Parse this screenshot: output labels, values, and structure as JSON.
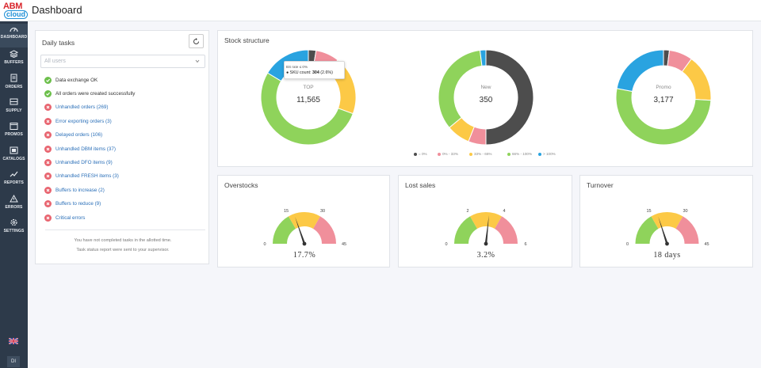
{
  "header": {
    "title": "Dashboard",
    "logo_top": "ABM",
    "logo_bottom": "cloud"
  },
  "sidebar": {
    "items": [
      {
        "label": "DASHBOARD",
        "icon": "gauge-icon"
      },
      {
        "label": "BUFFERS",
        "icon": "layers-icon"
      },
      {
        "label": "ORDERS",
        "icon": "document-icon"
      },
      {
        "label": "SUPPLY",
        "icon": "truck-icon"
      },
      {
        "label": "PROMOS",
        "icon": "calendar-icon"
      },
      {
        "label": "CATALOGS",
        "icon": "catalog-icon"
      },
      {
        "label": "REPORTS",
        "icon": "chart-icon"
      },
      {
        "label": "ERRORS",
        "icon": "warning-icon"
      },
      {
        "label": "SETTINGS",
        "icon": "gear-icon"
      }
    ],
    "language_icon": "uk-flag-icon",
    "user_initials": "DI"
  },
  "tasks": {
    "title": "Daily tasks",
    "select_placeholder": "All users",
    "items": [
      {
        "label": "Data exchange OK",
        "status": "ok"
      },
      {
        "label": "All orders were created successfully",
        "status": "ok"
      },
      {
        "label": "Unhandled orders (269)",
        "status": "error"
      },
      {
        "label": "Error exporting orders (3)",
        "status": "error"
      },
      {
        "label": "Delayed orders (106)",
        "status": "error"
      },
      {
        "label": "Unhandled DBM items (37)",
        "status": "error"
      },
      {
        "label": "Unhandled DFO items (9)",
        "status": "error"
      },
      {
        "label": "Unhandled FRESH items (3)",
        "status": "error"
      },
      {
        "label": "Buffers to increase (2)",
        "status": "error"
      },
      {
        "label": "Buffers to reduce (9)",
        "status": "error"
      },
      {
        "label": "Critical errors",
        "status": "error"
      }
    ],
    "footer_line1": "You have not completed tasks in the allotted time.",
    "footer_line2": "Task status report were sent to your supervisor."
  },
  "stock": {
    "title": "Stock structure",
    "legend": [
      {
        "label": "= 0%",
        "color": "#4d4d4d"
      },
      {
        "label": "0% - 33%",
        "color": "#f08f9b"
      },
      {
        "label": "33% - 66%",
        "color": "#fcc946"
      },
      {
        "label": "66% - 100%",
        "color": "#8fd35b"
      },
      {
        "label": "> 100%",
        "color": "#29a3e0"
      }
    ],
    "tooltip": {
      "header": "BS rate ≤ 0%",
      "label": "SKU count:",
      "value": "304",
      "pct": "(2.6%)"
    }
  },
  "chart_data": [
    {
      "type": "pie",
      "title": "TOP",
      "center_value": "11,565",
      "categories": [
        "= 0%",
        "0% - 33%",
        "33% - 66%",
        "66% - 100%",
        "> 100%"
      ],
      "values": [
        2.6,
        8,
        20,
        53,
        16.4
      ],
      "colors": [
        "#4d4d4d",
        "#f08f9b",
        "#fcc946",
        "#8fd35b",
        "#29a3e0"
      ]
    },
    {
      "type": "pie",
      "title": "New",
      "center_value": "350",
      "categories": [
        "= 0%",
        "0% - 33%",
        "33% - 66%",
        "66% - 100%",
        "> 100%"
      ],
      "values": [
        50,
        6,
        8,
        34,
        2
      ],
      "colors": [
        "#4d4d4d",
        "#f08f9b",
        "#fcc946",
        "#8fd35b",
        "#29a3e0"
      ]
    },
    {
      "type": "pie",
      "title": "Promo",
      "center_value": "3,177",
      "categories": [
        "= 0%",
        "0% - 33%",
        "33% - 66%",
        "66% - 100%",
        "> 100%"
      ],
      "values": [
        2,
        8,
        16,
        52,
        22
      ],
      "colors": [
        "#4d4d4d",
        "#f08f9b",
        "#fcc946",
        "#8fd35b",
        "#29a3e0"
      ]
    }
  ],
  "gauges": [
    {
      "title": "Overstocks",
      "ticks": [
        "0",
        "15",
        "30",
        "45"
      ],
      "value_label": "17.7%",
      "value": 17.7,
      "min": 0,
      "max": 45
    },
    {
      "title": "Lost sales",
      "ticks": [
        "0",
        "2",
        "4",
        "6"
      ],
      "value_label": "3.2%",
      "value": 3.2,
      "min": 0,
      "max": 6
    },
    {
      "title": "Turnover",
      "ticks": [
        "0",
        "15",
        "30",
        "45"
      ],
      "value_label": "18 days",
      "value": 18,
      "min": 0,
      "max": 45
    }
  ],
  "gauge_colors": [
    "#8fd35b",
    "#fcc946",
    "#f08f9b"
  ]
}
